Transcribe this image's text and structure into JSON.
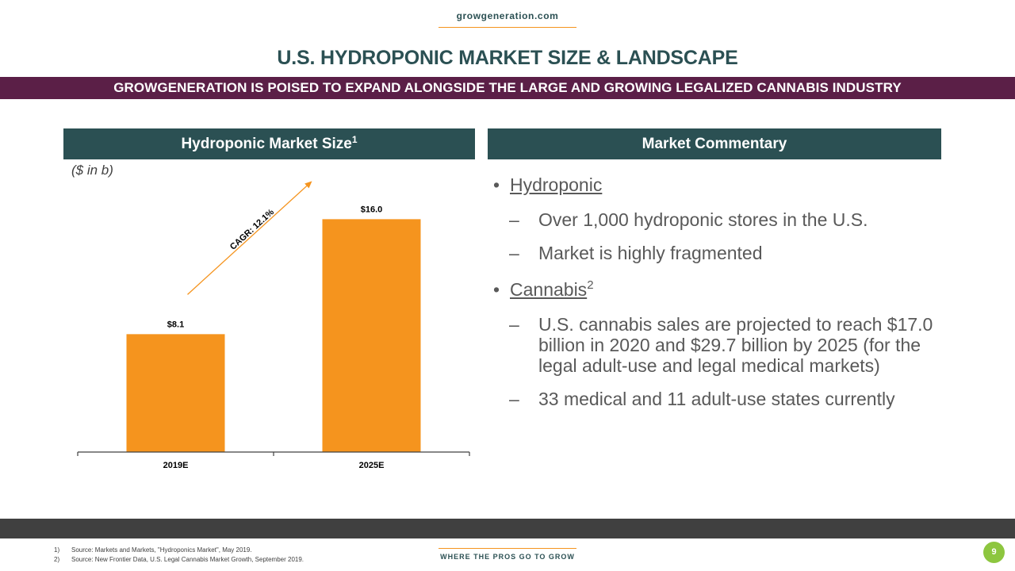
{
  "header": {
    "site": "growgeneration.com",
    "title": "U.S. HYDROPONIC MARKET SIZE & LANDSCAPE",
    "banner": "GROWGENERATION IS POISED TO EXPAND ALONGSIDE THE LARGE AND GROWING LEGALIZED CANNABIS INDUSTRY"
  },
  "left_panel": {
    "heading": "Hydroponic Market Size",
    "heading_sup": "1",
    "unit_note": "($ in b)"
  },
  "chart_data": {
    "type": "bar",
    "title": "Hydroponic Market Size",
    "categories": [
      "2019E",
      "2025E"
    ],
    "values": [
      8.1,
      16.0
    ],
    "value_labels": [
      "$8.1",
      "$16.0"
    ],
    "annotation": "CAGR: 12.1%",
    "xlabel": "",
    "ylabel": "($ in b)",
    "ylim": [
      0,
      18.8
    ],
    "grid": false,
    "colors": {
      "bar": "#f5941e",
      "axis": "#404040",
      "arrow": "#f5941e"
    }
  },
  "right_panel": {
    "heading": "Market Commentary",
    "bullets": [
      {
        "label": "Hydroponic",
        "sup": "",
        "items": [
          "Over 1,000 hydroponic stores in the U.S.",
          "Market is highly fragmented"
        ]
      },
      {
        "label": "Cannabis",
        "sup": "2",
        "items": [
          "U.S. cannabis sales are projected to reach $17.0 billion in 2020 and $29.7 billion by 2025 (for the legal adult-use and legal medical markets)",
          "33 medical and 11 adult-use states currently"
        ]
      }
    ]
  },
  "footer": {
    "notes": [
      {
        "num": "1)",
        "text": "Source: Markets and Markets, \"Hydroponics Market\", May 2019."
      },
      {
        "num": "2)",
        "text": "Source: New Frontier Data, U.S. Legal Cannabis Market Growth, September 2019."
      }
    ],
    "tagline": "WHERE THE PROS GO TO GROW",
    "page_number": "9"
  },
  "theme": {
    "teal": "#2b5053",
    "plum": "#5b1f47",
    "orange": "#f5941e",
    "dark_band": "#404040",
    "page_badge": "#8dc63f"
  }
}
